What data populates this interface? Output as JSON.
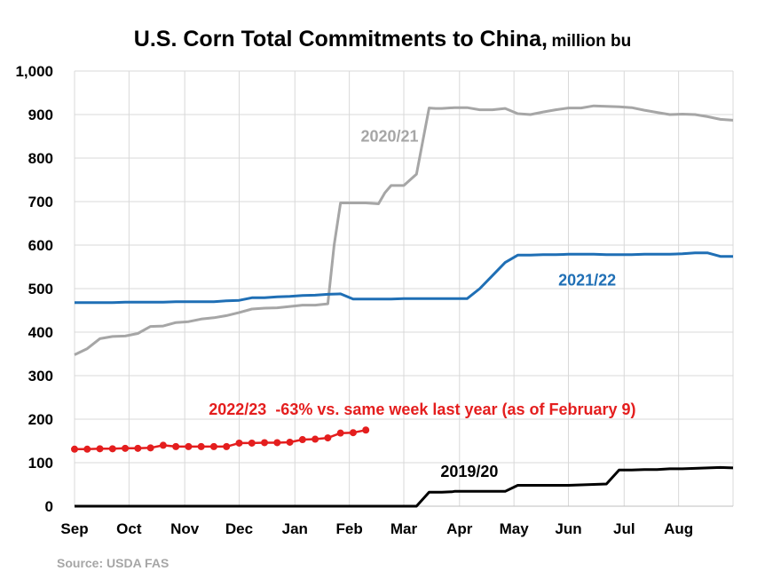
{
  "title": "U.S. Corn Total Commitments to China,",
  "title_unit": "million bu",
  "source": "Source: USDA FAS",
  "chart_data": {
    "type": "line",
    "title": "U.S. Corn Total Commitments to China, million bu",
    "ylabel": "",
    "xlabel": "",
    "ylim": [
      0,
      1000
    ],
    "xlim": [
      0,
      52
    ],
    "grid": true,
    "yticks": [
      0,
      100,
      200,
      300,
      400,
      500,
      600,
      700,
      800,
      900,
      1000
    ],
    "ytick_labels": [
      "0",
      "100",
      "200",
      "300",
      "400",
      "500",
      "600",
      "700",
      "800",
      "900",
      "1,000"
    ],
    "month_ticks": [
      0,
      4.3,
      8.7,
      13,
      17.4,
      21.7,
      26,
      30.4,
      34.7,
      39,
      43.4,
      47.7
    ],
    "month_labels": [
      "Sep",
      "Oct",
      "Nov",
      "Dec",
      "Jan",
      "Feb",
      "Mar",
      "Apr",
      "May",
      "Jun",
      "Jul",
      "Aug"
    ],
    "series": [
      {
        "name": "2020/21",
        "color": "#a6a6a6",
        "markers": false,
        "x": [
          0,
          1,
          2,
          3,
          4,
          5,
          6,
          7,
          8,
          9,
          10,
          11,
          12,
          13,
          14,
          15,
          16,
          17,
          18,
          19,
          20,
          20.5,
          21,
          22,
          23,
          24,
          24.5,
          25,
          26,
          27,
          28,
          28.5,
          29,
          30,
          31,
          32,
          33,
          34,
          35,
          36,
          37,
          38,
          39,
          40,
          41,
          42,
          43,
          44,
          45,
          46,
          47,
          48,
          49,
          50,
          51,
          52
        ],
        "y": [
          348,
          362,
          385,
          390,
          391,
          397,
          413,
          414,
          422,
          424,
          430,
          433,
          438,
          445,
          453,
          455,
          456,
          459,
          462,
          462,
          465,
          600,
          697,
          697,
          697,
          695,
          720,
          737,
          737,
          763,
          915,
          914,
          914,
          916,
          916,
          911,
          911,
          914,
          902,
          900,
          906,
          911,
          915,
          915,
          920,
          919,
          918,
          916,
          910,
          905,
          900,
          901,
          900,
          895,
          889,
          887
        ]
      },
      {
        "name": "2021/22",
        "color": "#1f6fb5",
        "markers": false,
        "x": [
          0,
          1,
          2,
          3,
          4,
          5,
          6,
          7,
          8,
          9,
          10,
          11,
          12,
          13,
          14,
          15,
          16,
          17,
          18,
          19,
          20,
          21,
          22,
          23,
          24,
          25,
          26,
          27,
          28,
          29,
          30,
          31,
          32,
          33,
          34,
          35,
          36,
          37,
          38,
          39,
          40,
          41,
          42,
          43,
          44,
          45,
          46,
          47,
          48,
          49,
          50,
          51,
          52
        ],
        "y": [
          468,
          468,
          468,
          468,
          469,
          469,
          469,
          469,
          470,
          470,
          470,
          470,
          472,
          473,
          479,
          479,
          481,
          482,
          484,
          485,
          487,
          488,
          476,
          476,
          476,
          476,
          477,
          477,
          477,
          477,
          477,
          477,
          500,
          530,
          560,
          577,
          577,
          578,
          578,
          579,
          579,
          579,
          578,
          578,
          578,
          579,
          579,
          579,
          580,
          582,
          582,
          574,
          574
        ]
      },
      {
        "name": "2019/20",
        "color": "#000000",
        "markers": false,
        "x": [
          0,
          27,
          28,
          29,
          29.8,
          30,
          31,
          32,
          33,
          34,
          35,
          36,
          37,
          38,
          39,
          40,
          41,
          42,
          43,
          44,
          45,
          46,
          47,
          48,
          49,
          50,
          51,
          52
        ],
        "y": [
          0,
          0,
          32,
          32,
          33,
          34,
          34,
          34,
          34,
          34,
          48,
          48,
          48,
          48,
          48,
          49,
          50,
          51,
          83,
          83,
          84,
          84,
          86,
          86,
          87,
          88,
          89,
          88
        ]
      },
      {
        "name": "2022/23",
        "color": "#e41e1e",
        "markers": true,
        "x": [
          0,
          1,
          2,
          3,
          4,
          5,
          6,
          7,
          8,
          9,
          10,
          11,
          12,
          13,
          14,
          15,
          16,
          17,
          18,
          19,
          20,
          21,
          22,
          23
        ],
        "y": [
          131,
          131,
          132,
          132,
          133,
          133,
          134,
          140,
          137,
          137,
          137,
          137,
          137,
          145,
          145,
          146,
          146,
          147,
          153,
          154,
          157,
          168,
          169,
          175
        ]
      }
    ],
    "annotations": [
      {
        "series": "2020/21",
        "text": "2020/21",
        "x": 22.6,
        "y": 838,
        "color": "#a6a6a6"
      },
      {
        "series": "2021/22",
        "text": "2021/22",
        "x": 38.2,
        "y": 507,
        "color": "#1f6fb5"
      },
      {
        "series": "2022/23",
        "text": "2022/23  -63% vs. same week last year (as of February 9)",
        "x": 10.6,
        "y": 210,
        "color": "#e41e1e"
      },
      {
        "series": "2019/20",
        "text": "2019/20",
        "x": 28.9,
        "y": 67,
        "color": "#000000"
      }
    ]
  }
}
